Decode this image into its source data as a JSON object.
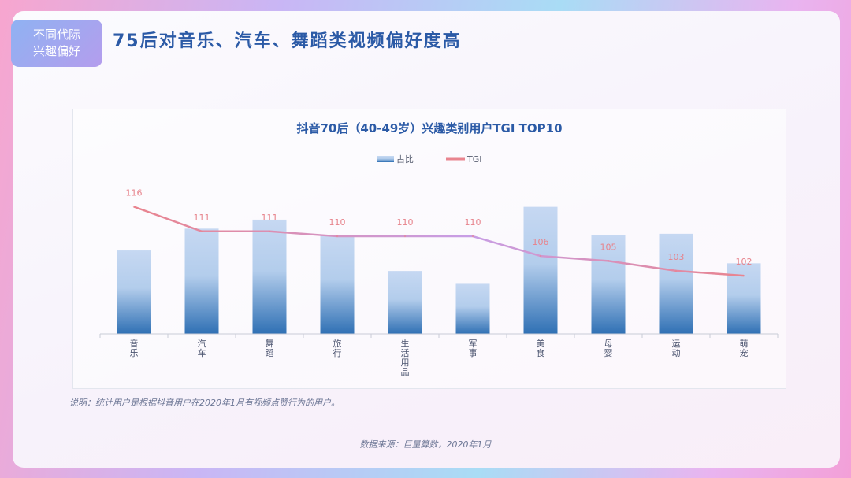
{
  "tag": {
    "line1": "不同代际",
    "line2": "兴趣偏好"
  },
  "headline": "75后对音乐、汽车、舞蹈类视频偏好度高",
  "note": "说明：统计用户是根据抖音用户在2020年1月有视频点赞行为的用户。",
  "source": "数据来源：巨量算数，2020年1月",
  "colors": {
    "bar_top": "#c6d8f2",
    "bar_bottom": "#2f70b4",
    "line_start": "#e9848f",
    "line_mid": "#c79ee6",
    "line_end": "#e9848f",
    "label": "#e7838c",
    "title": "#2b5aa6"
  },
  "chart_data": {
    "type": "bar+line",
    "title": "抖音70后（40-49岁）兴趣类别用户TGI TOP10",
    "categories": [
      "音乐",
      "汽车",
      "舞蹈",
      "旅行",
      "生活用品",
      "军事",
      "美食",
      "母婴",
      "运动",
      "萌宠"
    ],
    "series": [
      {
        "name": "占比",
        "type": "bar",
        "values": [
          0.65,
          0.82,
          0.89,
          0.77,
          0.49,
          0.39,
          0.99,
          0.77,
          0.78,
          0.55
        ]
      },
      {
        "name": "TGI",
        "type": "line",
        "values": [
          116,
          111,
          111,
          110,
          110,
          110,
          106,
          105,
          103,
          102
        ]
      }
    ],
    "legend": "top-center",
    "grid": false
  }
}
